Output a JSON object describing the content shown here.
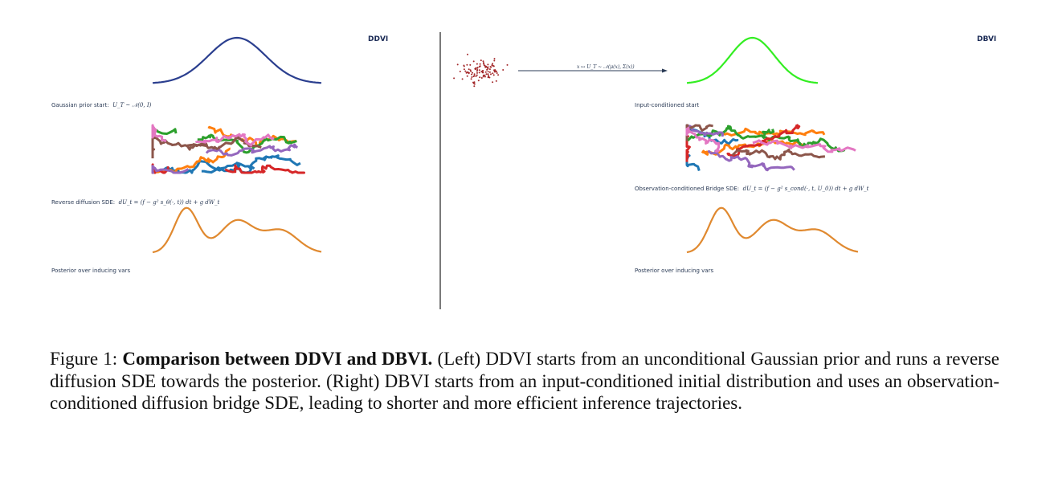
{
  "left_panel": {
    "title": "DDVI",
    "prior_label": "Gaussian prior start:",
    "prior_math": "U_T ~ 𝒩(0, I)",
    "sde_label": "Reverse diffusion SDE:",
    "sde_math": "dU_t = (f − g² s_θ(·, t)) dt + g dW_t",
    "posterior_label": "Posterior over inducing vars",
    "prior_color": "#2b3f8f",
    "posterior_color": "#e0892f"
  },
  "right_panel": {
    "title": "DBVI",
    "arrow_math": "x ↦ U_T ~ 𝒩(μ(x), Σ(x))",
    "start_label": "Input-conditioned start",
    "sde_label": "Observation-conditioned Bridge SDE:",
    "sde_math": "dU_t = (f − g² s_cond(·, t, U_0)) dt + g dW_t",
    "posterior_label": "Posterior over inducing vars",
    "start_color": "#33ee22",
    "scatter_color": "#a3282a",
    "posterior_color": "#e0892f"
  },
  "trajectory_colors": [
    "#1f77b4",
    "#ff7f0e",
    "#2ca02c",
    "#d62728",
    "#9467bd",
    "#8c564b",
    "#e377c2"
  ],
  "caption": {
    "prefix": "Figure 1: ",
    "bold": "Comparison between DDVI and DBVI.",
    "text": " (Left) DDVI starts from an unconditional Gaussian prior and runs a reverse diffusion SDE towards the posterior. (Right) DBVI starts from an input-conditioned initial distribution and uses an observation-conditioned diffusion bridge SDE, leading to shorter and more efficient inference trajectories."
  }
}
